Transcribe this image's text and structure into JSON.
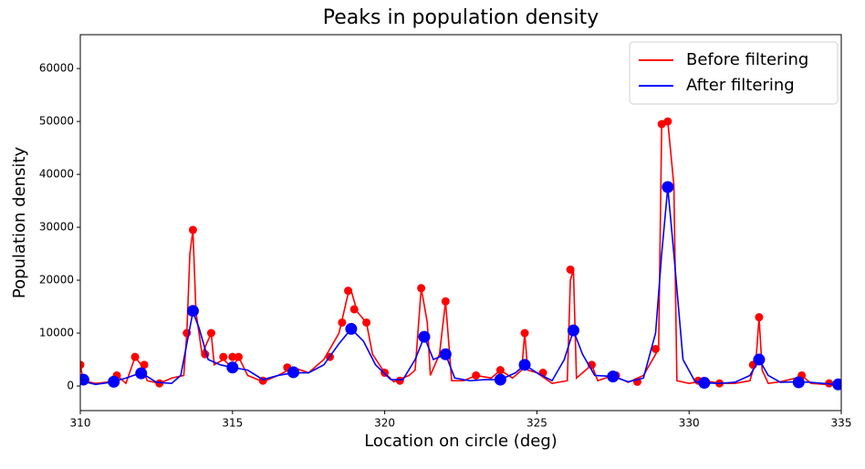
{
  "chart_data": {
    "type": "line",
    "title": "Peaks in population density",
    "xlabel": "Location on circle (deg)",
    "ylabel": "Population density",
    "xlim": [
      310,
      335
    ],
    "ylim": [
      -4650,
      66400
    ],
    "xticks": [
      310,
      315,
      320,
      325,
      330,
      335
    ],
    "yticks": [
      0,
      10000,
      20000,
      30000,
      40000,
      50000,
      60000
    ],
    "grid": false,
    "legend": "upper right",
    "series": [
      {
        "name": "Before filtering",
        "color": "#ff0000",
        "x": [
          310,
          310.1,
          310.5,
          311,
          311.2,
          311.5,
          311.8,
          312,
          312.2,
          312.6,
          313,
          313.4,
          313.5,
          313.6,
          313.7,
          313.8,
          314,
          314.3,
          314.4,
          314.7,
          315,
          315.2,
          315.5,
          316,
          316.5,
          317,
          317.5,
          318,
          318.5,
          318.8,
          318.9,
          319.1,
          319.4,
          319.6,
          320,
          320.3,
          320.8,
          321,
          321.2,
          321.4,
          321.5,
          321.8,
          322,
          322.2,
          322.6,
          323,
          323.5,
          323.8,
          324.2,
          324.5,
          324.6,
          324.7,
          325,
          325.5,
          326,
          326.1,
          326.2,
          326.3,
          326.8,
          327,
          327.5,
          328,
          328.5,
          328.8,
          329,
          329.1,
          329.3,
          329.5,
          329.6,
          330,
          330.5,
          331,
          331.5,
          332,
          332.2,
          332.3,
          332.4,
          332.6,
          333,
          333.5,
          333.7,
          334,
          334.5,
          335
        ],
        "values": [
          4000,
          1000,
          500,
          800,
          2000,
          500,
          5500,
          4000,
          1000,
          500,
          1500,
          2000,
          10000,
          25000,
          29500,
          14000,
          6000,
          10000,
          4000,
          5000,
          3500,
          5500,
          2000,
          800,
          2000,
          3500,
          2500,
          5000,
          10000,
          17500,
          18000,
          14000,
          12000,
          6000,
          2500,
          800,
          2000,
          3000,
          18500,
          12000,
          2000,
          6000,
          16000,
          1000,
          1000,
          2000,
          1500,
          3000,
          1500,
          3000,
          10000,
          3000,
          2500,
          500,
          1000,
          20000,
          22000,
          1500,
          4000,
          1000,
          2000,
          700,
          2000,
          5000,
          7000,
          49500,
          50000,
          38000,
          1000,
          500,
          1000,
          500,
          500,
          1000,
          5000,
          13000,
          3000,
          500,
          800,
          1500,
          2000,
          500,
          300,
          200
        ],
        "peaks_x": [
          310,
          311.2,
          311.8,
          312.1,
          312.6,
          313.5,
          313.7,
          314.1,
          314.3,
          314.7,
          315,
          315.2,
          316,
          316.8,
          318.2,
          318.6,
          318.8,
          319,
          319.4,
          320,
          320.5,
          321.2,
          322,
          323,
          323.8,
          324.6,
          325.2,
          326.1,
          326.8,
          327.6,
          328.3,
          328.9,
          329.1,
          329.3,
          330.3,
          331,
          332.1,
          332.3,
          333.7,
          334.6
        ],
        "peaks_values": [
          4000,
          2000,
          5500,
          4000,
          500,
          10000,
          29500,
          6000,
          10000,
          5500,
          5500,
          5500,
          1000,
          3500,
          5500,
          12000,
          18000,
          14500,
          12000,
          2500,
          1000,
          18500,
          16000,
          2000,
          3000,
          10000,
          2500,
          22000,
          4000,
          2000,
          800,
          7000,
          49500,
          50000,
          1000,
          500,
          4000,
          13000,
          2000,
          500
        ]
      },
      {
        "name": "After filtering",
        "color": "#0000ff",
        "x": [
          310,
          310.5,
          311,
          311.5,
          312,
          312.5,
          313,
          313.3,
          313.5,
          313.7,
          313.9,
          314.2,
          314.6,
          315,
          315.5,
          316,
          316.5,
          317,
          317.5,
          318,
          318.5,
          318.9,
          319.3,
          319.7,
          320.2,
          320.6,
          321,
          321.3,
          321.6,
          322,
          322.3,
          322.8,
          323.3,
          323.8,
          324.3,
          324.6,
          325,
          325.5,
          325.9,
          326.2,
          326.5,
          326.9,
          327.5,
          328,
          328.5,
          328.9,
          329.1,
          329.3,
          329.5,
          329.8,
          330.2,
          330.5,
          331,
          331.5,
          332,
          332.3,
          332.6,
          333,
          333.6,
          334,
          334.8,
          335
        ],
        "values": [
          1000,
          300,
          700,
          1500,
          2500,
          700,
          500,
          2000,
          8000,
          14000,
          11000,
          5000,
          4000,
          3500,
          3000,
          1200,
          2000,
          2500,
          2500,
          4000,
          8000,
          10800,
          8500,
          4000,
          1200,
          1200,
          5000,
          9300,
          5000,
          6000,
          1500,
          1000,
          1200,
          1200,
          2500,
          4000,
          2500,
          1000,
          5000,
          10500,
          6000,
          2000,
          1800,
          800,
          1500,
          10000,
          25000,
          37500,
          25000,
          5000,
          800,
          600,
          500,
          700,
          2000,
          5000,
          2000,
          700,
          800,
          700,
          300,
          200
        ],
        "peaks_x": [
          310.1,
          311.1,
          312,
          313.7,
          315,
          317,
          318.9,
          321.3,
          322,
          323.8,
          324.6,
          326.2,
          327.5,
          329.3,
          330.5,
          332.3,
          333.6,
          334.9
        ],
        "peaks_values": [
          1200,
          800,
          2400,
          14200,
          3500,
          2600,
          10800,
          9300,
          6000,
          1200,
          4000,
          10500,
          1800,
          37600,
          600,
          5000,
          700,
          300
        ]
      }
    ]
  }
}
